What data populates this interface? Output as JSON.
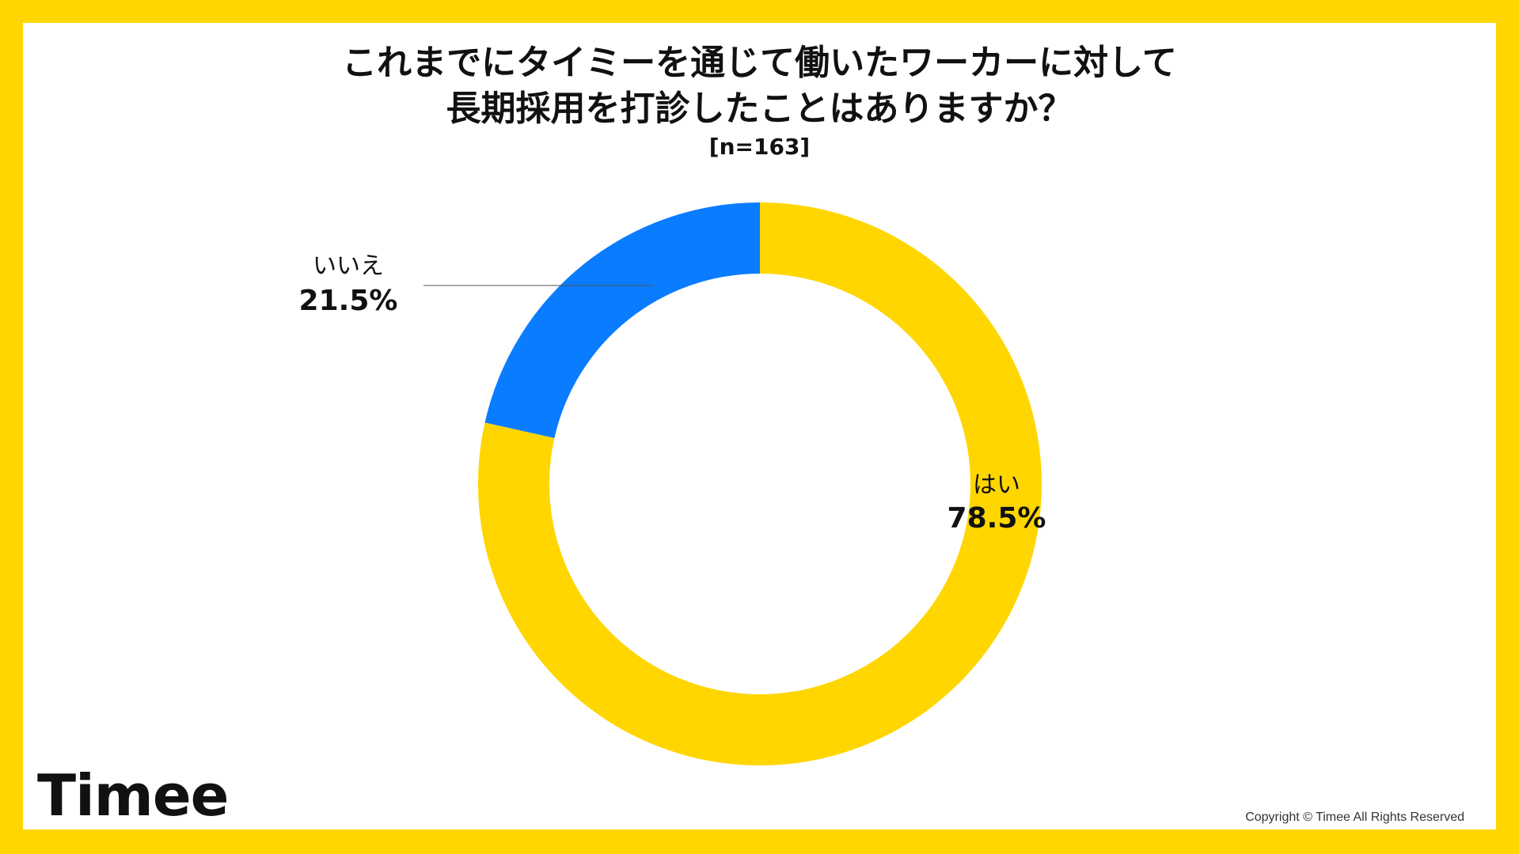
{
  "title_line1": "これまでにタイミーを通じて働いたワーカーに対して",
  "title_line2": "長期採用を打診したことはありますか？",
  "sample": "[n=163]",
  "chart_data": {
    "type": "pie",
    "donut": true,
    "title": "これまでにタイミーを通じて働いたワーカーに対して長期採用を打診したことはありますか？",
    "subtitle": "[n=163]",
    "categories": [
      "はい",
      "いいえ"
    ],
    "values": [
      78.5,
      21.5
    ],
    "value_labels": [
      "78.5%",
      "21.5%"
    ],
    "colors": [
      "#FFD600",
      "#0A7CFF"
    ]
  },
  "brand": "Timee",
  "copyright": "Copyright © Timee All Rights Reserved"
}
